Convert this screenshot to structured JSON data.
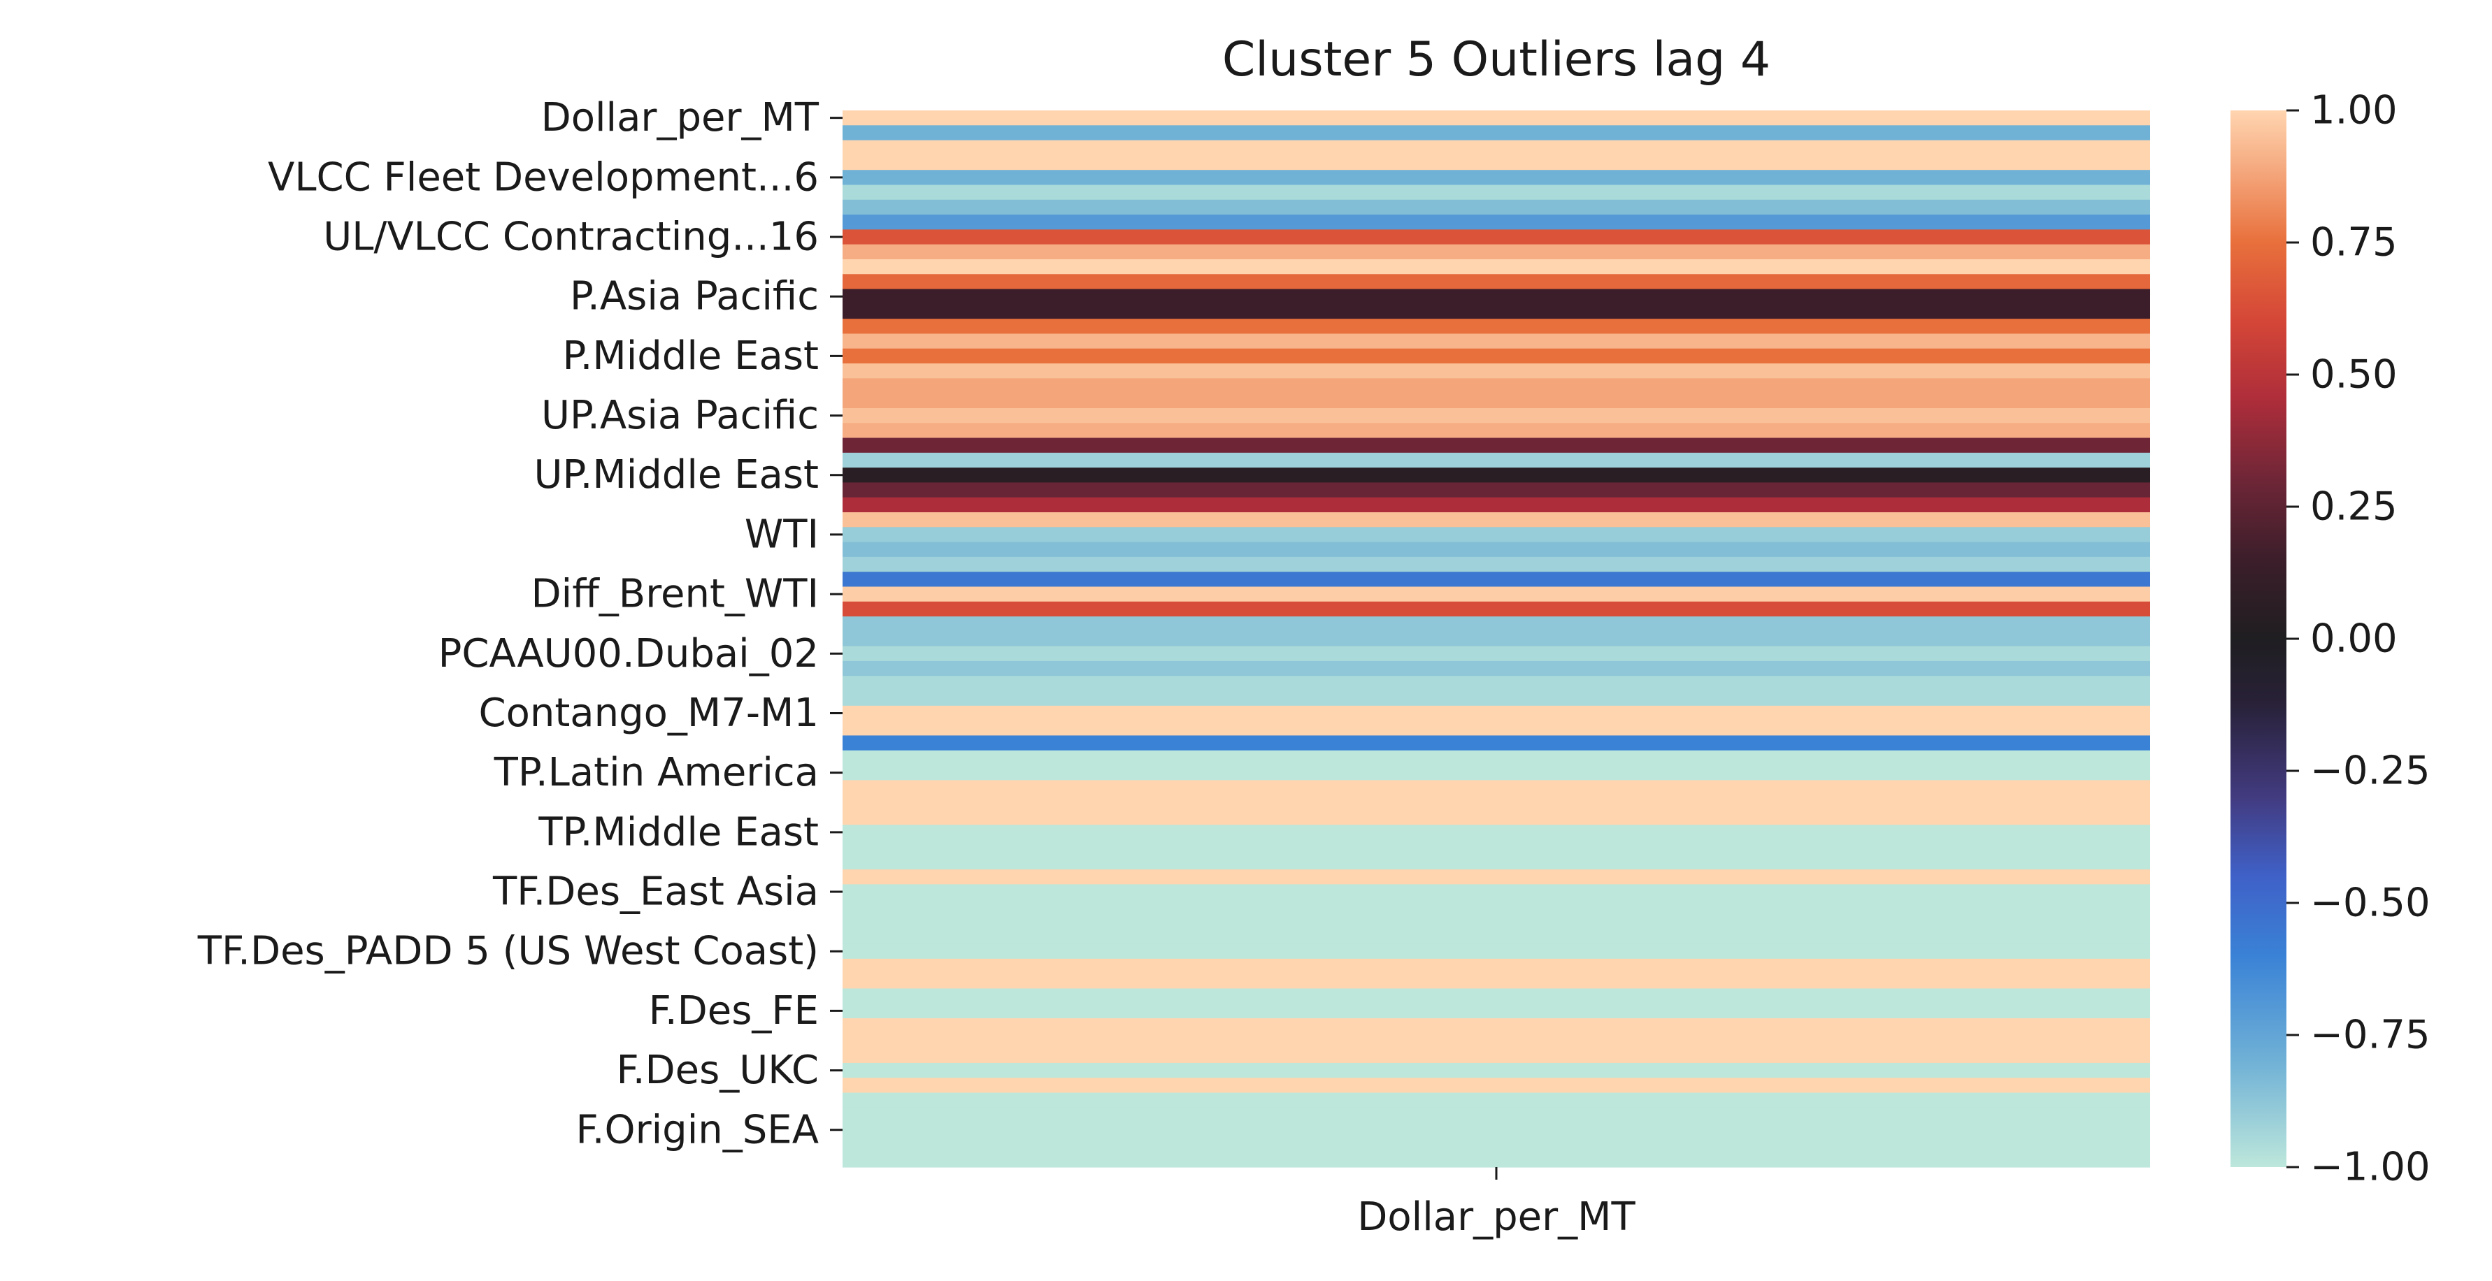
{
  "chart_data": {
    "type": "heatmap",
    "title": "Cluster 5 Outliers lag 4",
    "xlabel": "",
    "ylabel": "",
    "columns": [
      "Dollar_per_MT"
    ],
    "row_tick_labels": [
      "Dollar_per_MT",
      "VLCC Fleet Development...6",
      "UL/VLCC Contracting...16",
      "P.Asia Pacific",
      "P.Middle East",
      "UP.Asia Pacific",
      "UP.Middle East",
      "WTI",
      "Diff_Brent_WTI",
      "PCAAU00.Dubai_02",
      "Contango_M7-M1",
      "TP.Latin America",
      "TP.Middle East",
      "TF.Des_East Asia",
      "TF.Des_PADD 5 (US West Coast)",
      "F.Des_FE",
      "F.Des_UKC",
      "F.Origin_SEA"
    ],
    "tick_every": 4,
    "values": [
      1.0,
      -0.8,
      1.0,
      1.0,
      -0.8,
      -0.95,
      -0.85,
      -0.7,
      0.65,
      0.9,
      1.0,
      0.72,
      0.15,
      0.15,
      0.75,
      0.92,
      0.75,
      0.95,
      0.88,
      0.88,
      0.95,
      0.9,
      0.3,
      -0.92,
      0.05,
      0.28,
      0.45,
      0.95,
      -0.9,
      -0.85,
      -0.92,
      -0.55,
      0.98,
      0.62,
      -0.88,
      -0.88,
      -0.95,
      -0.88,
      -0.95,
      -0.95,
      1.0,
      1.0,
      -0.6,
      -1.0,
      -1.0,
      1.0,
      1.0,
      1.0,
      -1.0,
      -1.0,
      -1.0,
      1.0,
      -1.0,
      -1.0,
      -1.0,
      -1.0,
      -1.0,
      1.0,
      1.0,
      -1.0,
      -1.0,
      1.0,
      1.0,
      1.0,
      -1.0,
      1.0,
      -1.0,
      -1.0,
      -1.0,
      -1.0,
      -1.0
    ],
    "vmin": -1.0,
    "vmax": 1.0,
    "colormap": "icefire",
    "colorbar_ticks": [
      "1.00",
      "0.75",
      "0.50",
      "0.25",
      "0.00",
      "−0.25",
      "−0.50",
      "−0.75",
      "−1.00"
    ],
    "colorbar_tick_values": [
      1.0,
      0.75,
      0.5,
      0.25,
      0.0,
      -0.25,
      -0.5,
      -0.75,
      -1.0
    ]
  }
}
